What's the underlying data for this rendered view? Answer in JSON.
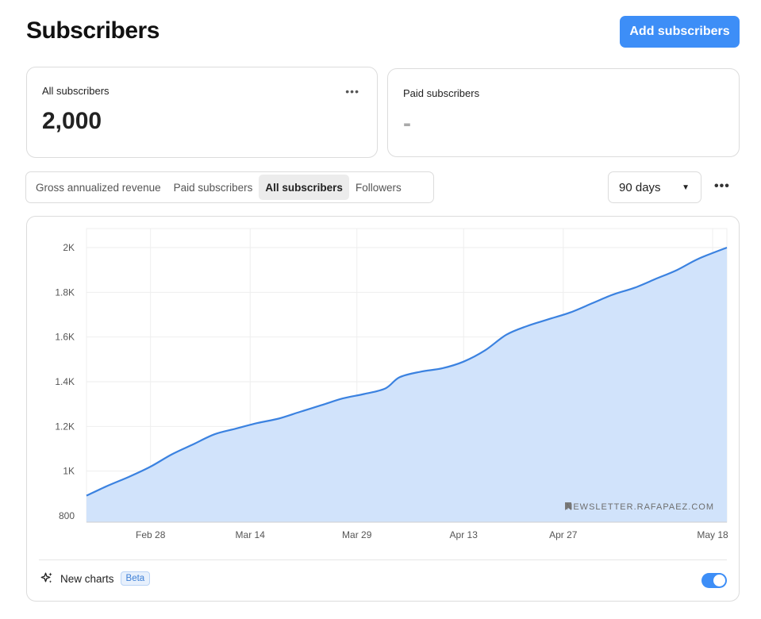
{
  "header": {
    "title": "Subscribers",
    "add_button": "Add subscribers"
  },
  "stats": [
    {
      "label": "All subscribers",
      "value": "2,000"
    },
    {
      "label": "Paid subscribers",
      "value": "-"
    }
  ],
  "tabs": [
    {
      "label": "Gross annualized revenue",
      "active": false
    },
    {
      "label": "Paid subscribers",
      "active": false
    },
    {
      "label": "All subscribers",
      "active": true
    },
    {
      "label": "Followers",
      "active": false
    }
  ],
  "range": {
    "selected": "90 days"
  },
  "chart_data": {
    "type": "area",
    "watermark": "NEWSLETTER.RAFAPAEZ.COM",
    "color": "#3b82e0",
    "fill": "#cfe2fb",
    "ylim": [
      800,
      2000
    ],
    "y_ticks": [
      800,
      1000,
      1200,
      1400,
      1600,
      1800,
      2000
    ],
    "y_tick_labels": [
      "800",
      "1K",
      "1.2K",
      "1.4K",
      "1.6K",
      "1.8K",
      "2K"
    ],
    "x_range": [
      "Feb 19",
      "May 20"
    ],
    "x_ticks": [
      "Feb 28",
      "Mar 14",
      "Mar 29",
      "Apr 13",
      "Apr 27",
      "May 18"
    ],
    "x": [
      "Feb 19",
      "Feb 22",
      "Feb 25",
      "Feb 28",
      "Mar 3",
      "Mar 6",
      "Mar 9",
      "Mar 12",
      "Mar 15",
      "Mar 18",
      "Mar 21",
      "Mar 24",
      "Mar 27",
      "Mar 30",
      "Apr 2",
      "Apr 4",
      "Apr 7",
      "Apr 10",
      "Apr 13",
      "Apr 16",
      "Apr 19",
      "Apr 22",
      "Apr 25",
      "Apr 28",
      "May 1",
      "May 4",
      "May 7",
      "May 10",
      "May 13",
      "May 16",
      "May 20"
    ],
    "values": [
      890,
      935,
      975,
      1020,
      1075,
      1120,
      1165,
      1190,
      1215,
      1235,
      1265,
      1295,
      1325,
      1345,
      1370,
      1420,
      1445,
      1460,
      1490,
      1540,
      1610,
      1650,
      1680,
      1710,
      1750,
      1790,
      1820,
      1860,
      1900,
      1950,
      2000
    ],
    "grid": true,
    "legend": "none"
  },
  "footer": {
    "label": "New charts",
    "badge": "Beta",
    "toggle_on": true
  },
  "icons": {
    "sparkle": "sparkle-icon",
    "bookmark": "bookmark-icon",
    "more": "more-horizontal-icon",
    "caret": "caret-down-icon"
  }
}
